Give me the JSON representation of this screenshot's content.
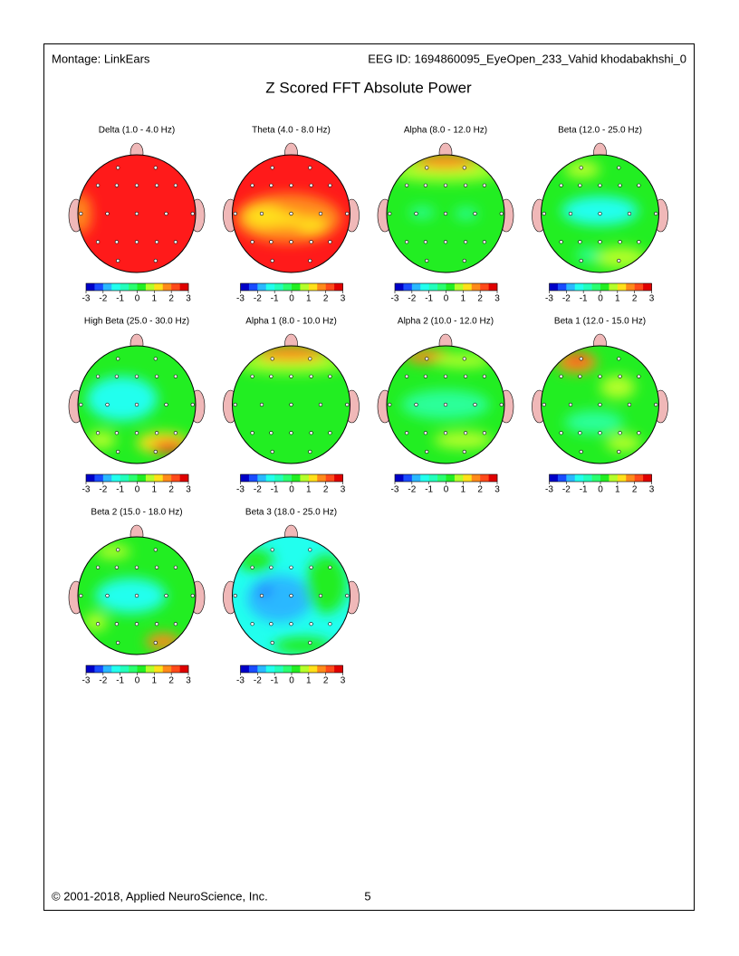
{
  "header": {
    "montage": "Montage:  LinkEars",
    "eeg_id": "EEG ID:  1694860095_EyeOpen_233_Vahid khodabakhshi_0"
  },
  "title": "Z Scored FFT Absolute Power",
  "maps": [
    {
      "title": "Delta (1.0 - 4.0 Hz)"
    },
    {
      "title": "Theta (4.0 - 8.0 Hz)"
    },
    {
      "title": "Alpha (8.0 - 12.0 Hz)"
    },
    {
      "title": "Beta (12.0 - 25.0 Hz)"
    },
    {
      "title": "High Beta (25.0 - 30.0 Hz)"
    },
    {
      "title": "Alpha 1 (8.0 - 10.0 Hz)"
    },
    {
      "title": "Alpha 2 (10.0 - 12.0 Hz)"
    },
    {
      "title": "Beta 1 (12.0 - 15.0 Hz)"
    },
    {
      "title": "Beta 2 (15.0 - 18.0 Hz)"
    },
    {
      "title": "Beta 3 (18.0 - 25.0 Hz)"
    }
  ],
  "colorbar_ticks": [
    -3,
    -2,
    -1,
    0,
    1,
    2,
    3
  ],
  "footer": {
    "copyright": "© 2001-2018, Applied NeuroScience, Inc.",
    "page": 5
  }
}
